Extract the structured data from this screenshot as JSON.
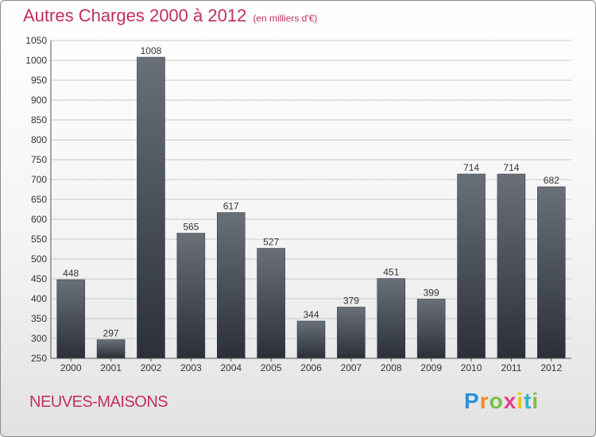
{
  "header": {
    "title": "Autres Charges 2000 à 2012",
    "subtitle": "(en milliers d'€)"
  },
  "location": "NEUVES-MAISONS",
  "logo": {
    "letters": [
      {
        "ch": "P",
        "color": "#2f8fd8"
      },
      {
        "ch": "r",
        "color": "#f28c1e"
      },
      {
        "ch": "o",
        "color": "#7ac143"
      },
      {
        "ch": "x",
        "color": "#e63c8c"
      },
      {
        "ch": "i",
        "color": "#f2c318"
      },
      {
        "ch": "t",
        "color": "#2fb3c9"
      },
      {
        "ch": "i",
        "color": "#7ac143"
      }
    ]
  },
  "colors": {
    "title": "#c0305a",
    "bar_top": "#6a7078",
    "bar_bottom": "#2b3038",
    "grid": "#c8c8c8"
  },
  "chart_data": {
    "type": "bar",
    "title": "Autres Charges 2000 à 2012",
    "subtitle": "(en milliers d'€)",
    "categories": [
      "2000",
      "2001",
      "2002",
      "2003",
      "2004",
      "2005",
      "2006",
      "2007",
      "2008",
      "2009",
      "2010",
      "2011",
      "2012"
    ],
    "values": [
      448,
      297,
      1008,
      565,
      617,
      527,
      344,
      379,
      451,
      399,
      714,
      714,
      682
    ],
    "ylim": [
      250,
      1050
    ],
    "yticks": [
      250,
      300,
      350,
      400,
      450,
      500,
      550,
      600,
      650,
      700,
      750,
      800,
      850,
      900,
      950,
      1000,
      1050
    ],
    "grid": true,
    "data_labels": true
  }
}
